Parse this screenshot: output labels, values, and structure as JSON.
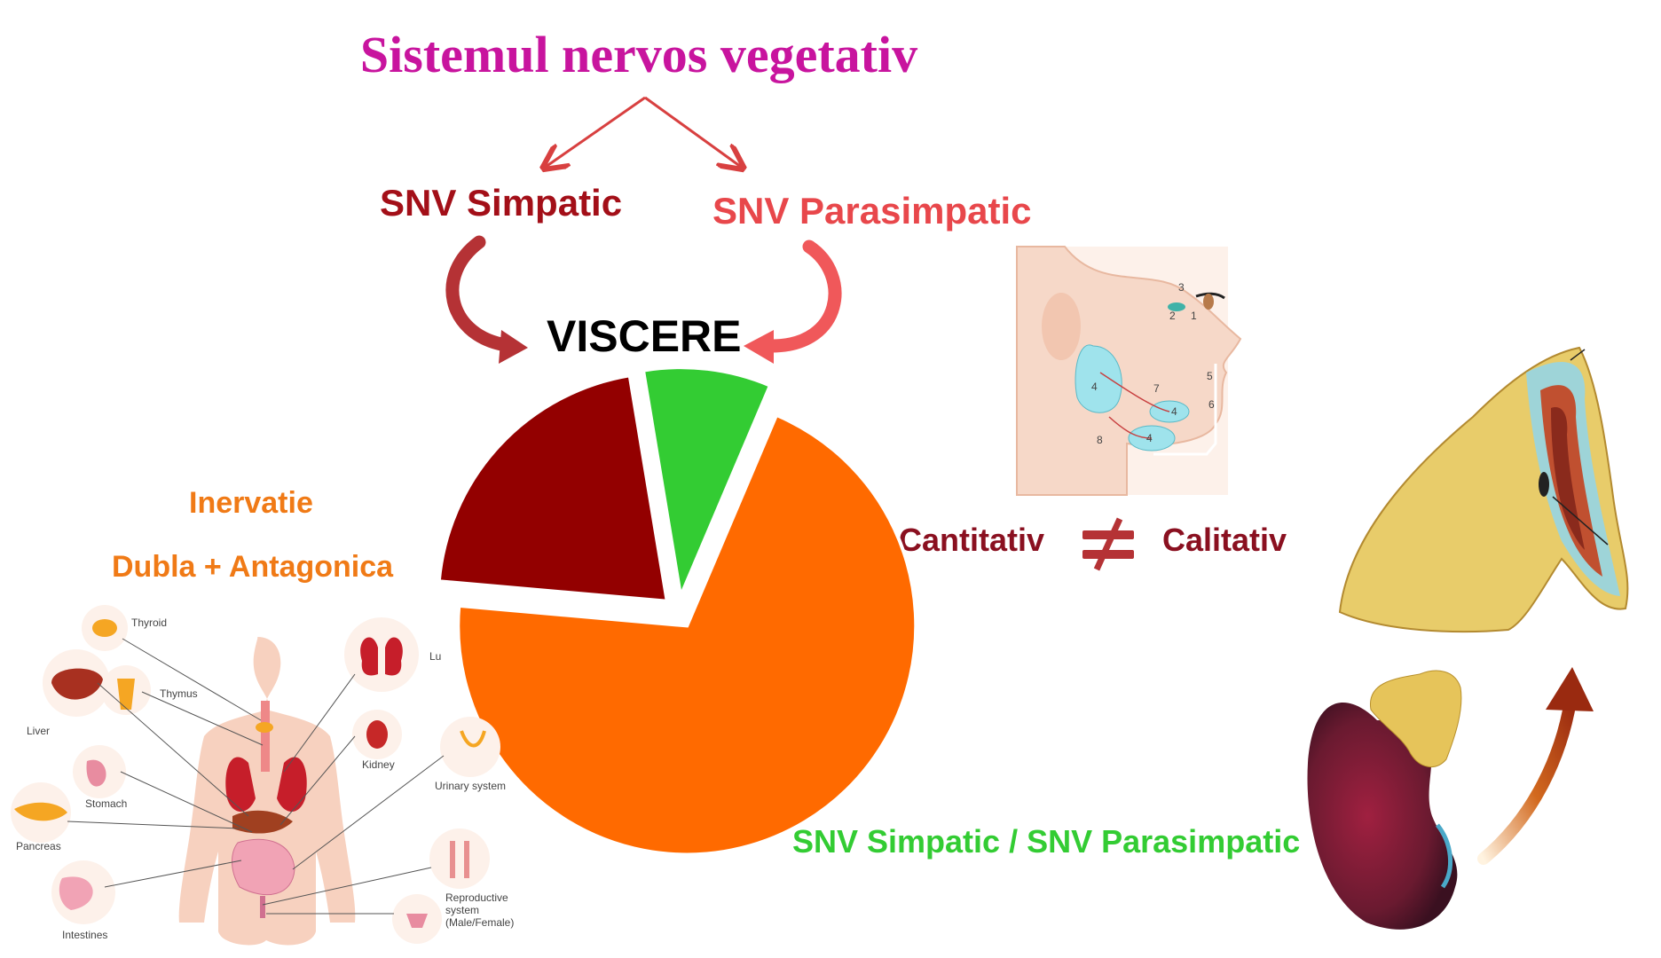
{
  "title": "Sistemul nervos vegetativ",
  "branches": {
    "left": "SNV Simpatic",
    "right": "SNV Parasimpatic"
  },
  "target": "VISCERE",
  "innervation": {
    "line1": "Inervatie",
    "line2": "Dubla + Antagonica"
  },
  "comparison": {
    "left": "Cantitativ",
    "symbol": "≠",
    "right": "Calitativ"
  },
  "bottom_caption": "SNV Simpatic / SNV Parasimpatic",
  "organs_illustration": {
    "labels": [
      "Thyroid",
      "Lu",
      "Thymus",
      "Liver",
      "Kidney",
      "Stomach",
      "Urinary system",
      "Pancreas",
      "Reproductive",
      "system",
      "(Male/Female)",
      "Intestines"
    ]
  },
  "head_illustration": {
    "labels": [
      "3",
      "2",
      "1",
      "5",
      "4",
      "7",
      "4",
      "6",
      "8",
      "4"
    ]
  },
  "pie": {
    "slices": [
      {
        "name": "orange",
        "value": 0.7,
        "color": "#ff6a00"
      },
      {
        "name": "dark-red",
        "value": 0.21,
        "color": "#930000"
      },
      {
        "name": "green",
        "value": 0.09,
        "color": "#33cc33"
      }
    ]
  },
  "colors": {
    "title": "#c8149e",
    "simpatic": "#a30f18",
    "parasimpatic": "#e8474b",
    "orange": "#f07a16",
    "green": "#33cc33",
    "dark_red": "#8a1020"
  }
}
